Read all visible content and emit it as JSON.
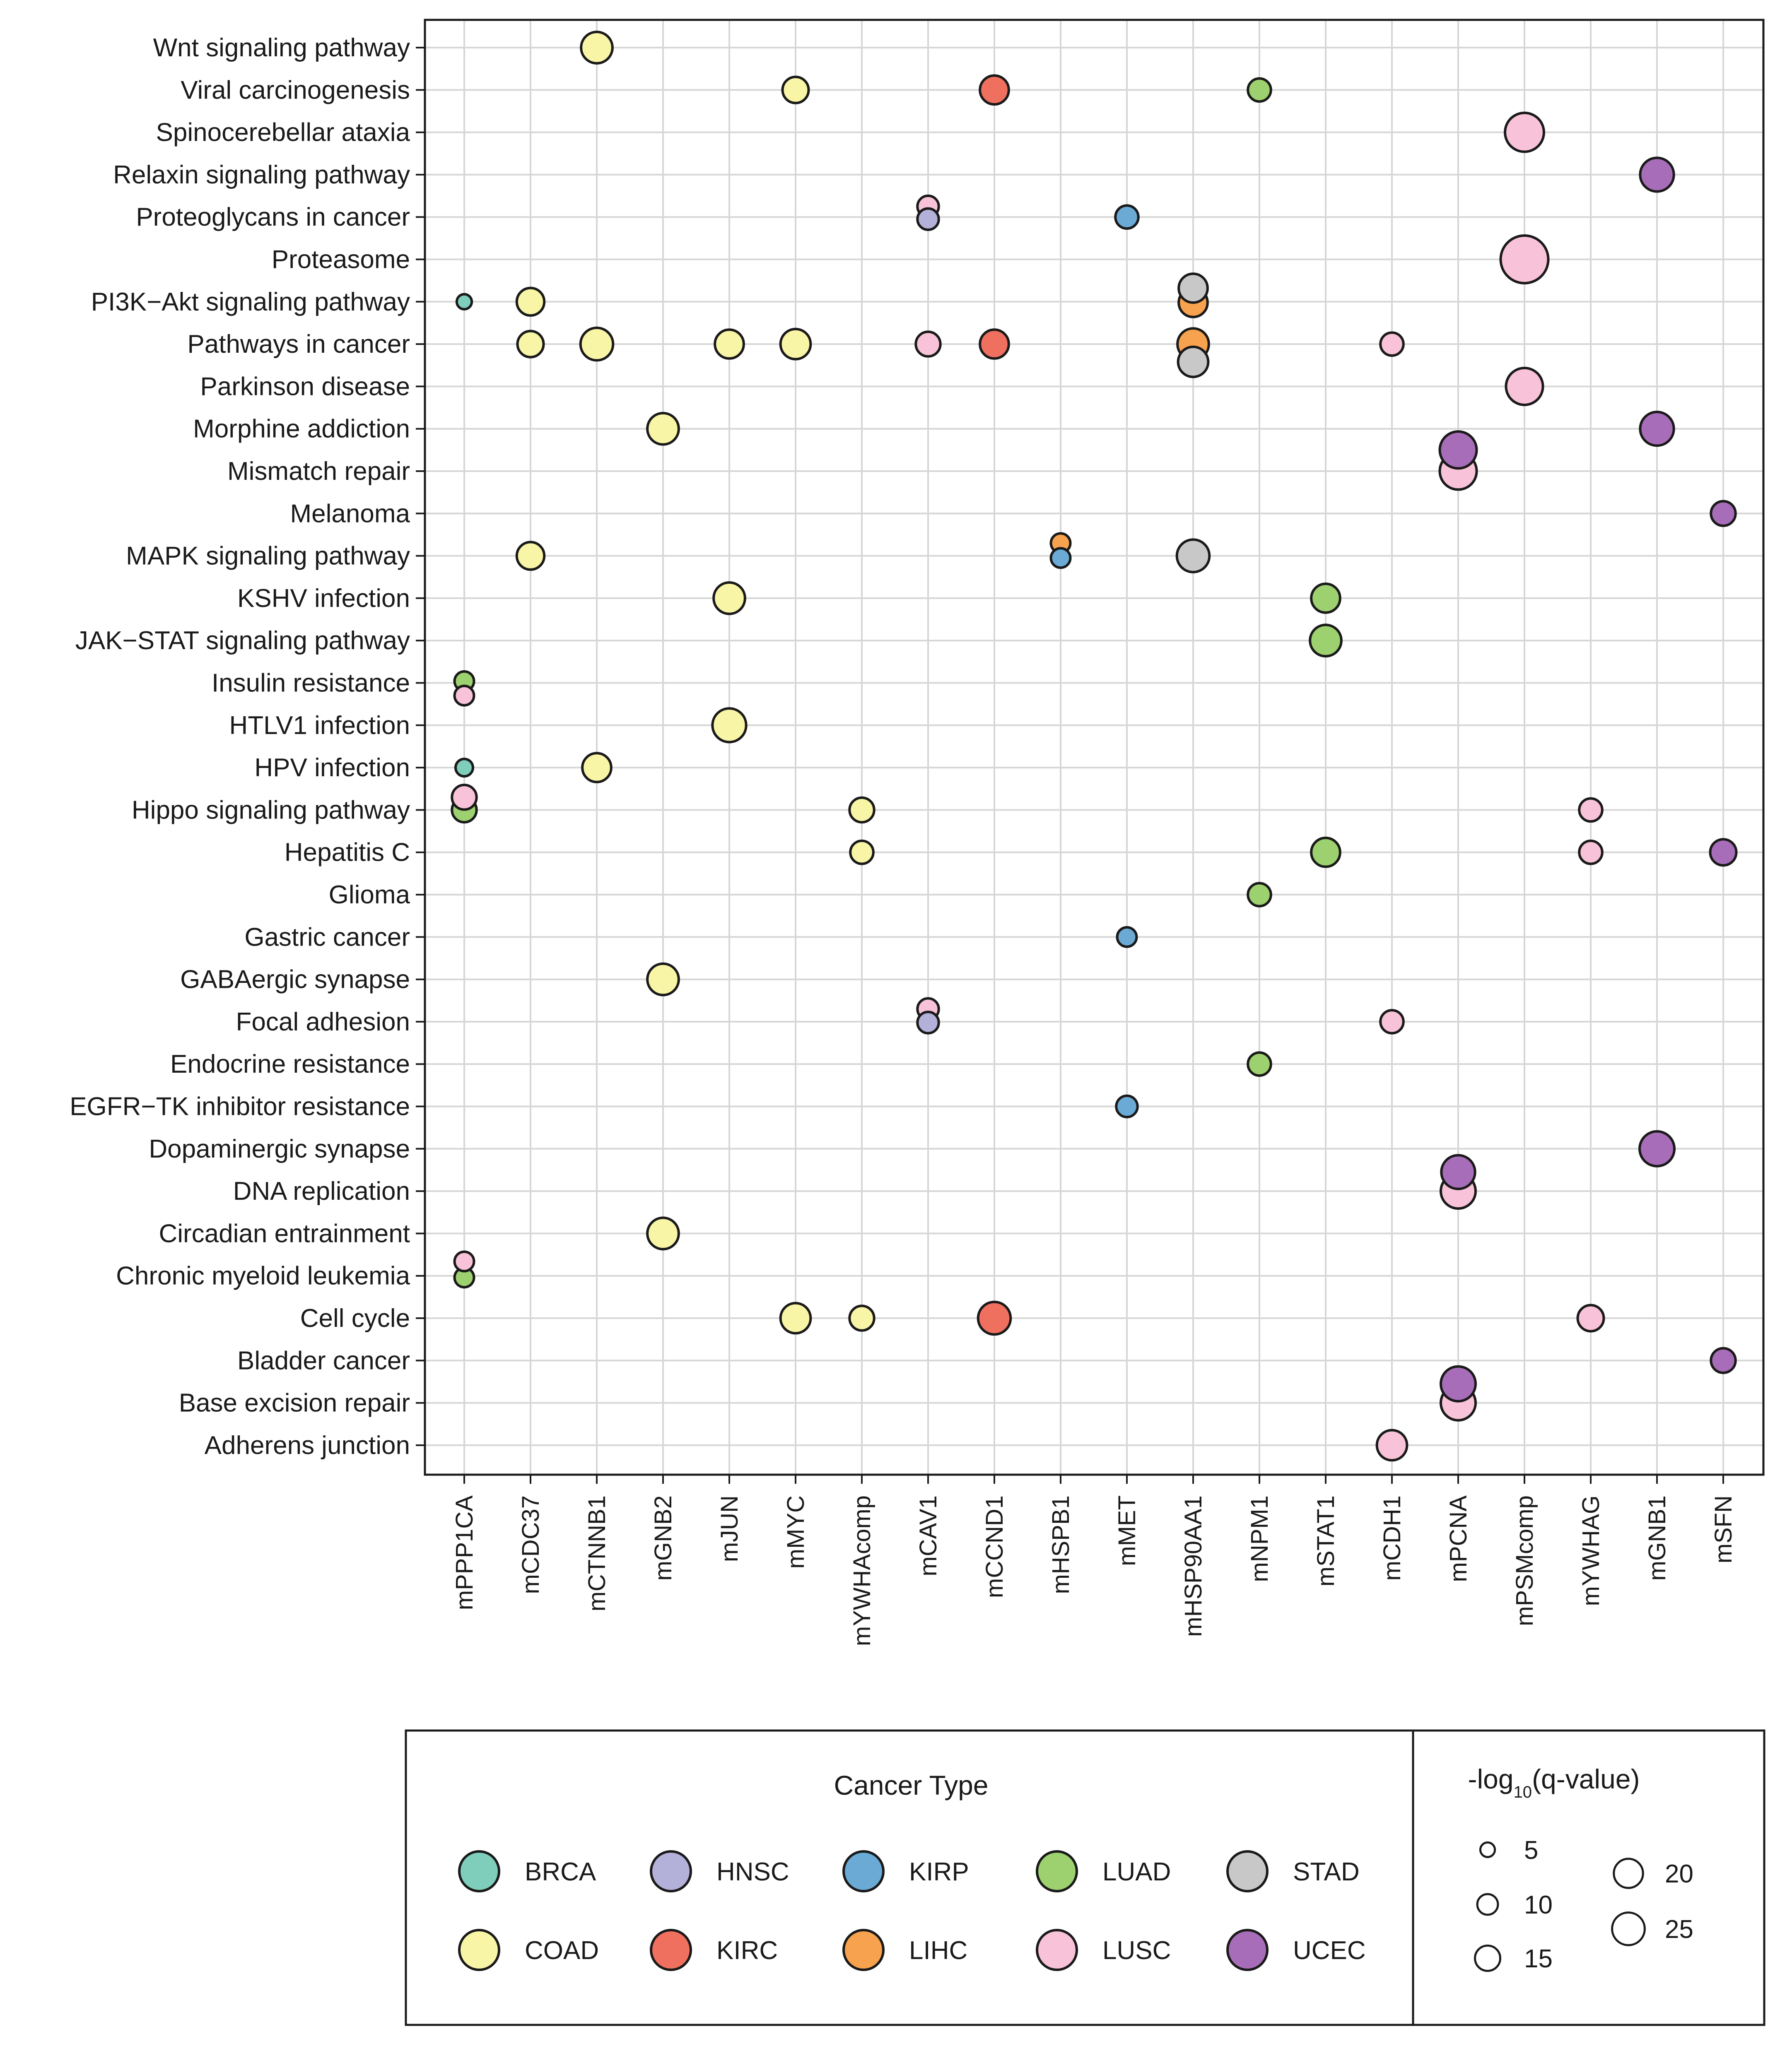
{
  "chart_data": {
    "type": "scatter",
    "title": "",
    "xlabel": "",
    "ylabel": "",
    "grid": true,
    "x_categories": [
      "mPPP1CA",
      "mCDC37",
      "mCTNNB1",
      "mGNB2",
      "mJUN",
      "mMYC",
      "mYWHAcomp",
      "mCAV1",
      "mCCND1",
      "mHSPB1",
      "mMET",
      "mHSP90AA1",
      "mNPM1",
      "mSTAT1",
      "mCDH1",
      "mPCNA",
      "mPSMcomp",
      "mYWHAG",
      "mGNB1",
      "mSFN"
    ],
    "y_categories": [
      "Wnt signaling pathway",
      "Viral carcinogenesis",
      "Spinocerebellar ataxia",
      "Relaxin signaling pathway",
      "Proteoglycans in cancer",
      "Proteasome",
      "PI3K−Akt signaling pathway",
      "Pathways in cancer",
      "Parkinson disease",
      "Morphine addiction",
      "Mismatch repair",
      "Melanoma",
      "MAPK signaling pathway",
      "KSHV infection",
      "JAK−STAT signaling pathway",
      "Insulin resistance",
      "HTLV1 infection",
      "HPV infection",
      "Hippo signaling pathway",
      "Hepatitis C",
      "Glioma",
      "Gastric cancer",
      "GABAergic synapse",
      "Focal adhesion",
      "Endocrine resistance",
      "EGFR−TK inhibitor resistance",
      "Dopaminergic synapse",
      "DNA replication",
      "Circadian entrainment",
      "Chronic myeloid leukemia",
      "Cell cycle",
      "Bladder cancer",
      "Base excision repair",
      "Adherens junction"
    ],
    "cancer_colors": {
      "BRCA": "#7fcdbb",
      "HNSC": "#b3b0d9",
      "KIRP": "#6aaad4",
      "LUAD": "#9dd06e",
      "STAD": "#c8c8c8",
      "COAD": "#f8f5a6",
      "KIRC": "#f0705f",
      "LIHC": "#f7a24e",
      "LUSC": "#f8c2d8",
      "UCEC": "#a86db8"
    },
    "points": [
      {
        "pathway": "Wnt signaling pathway",
        "gene": "mCTNNB1",
        "cancer": "COAD",
        "q": 13,
        "offset": 0
      },
      {
        "pathway": "Viral carcinogenesis",
        "gene": "mMYC",
        "cancer": "COAD",
        "q": 9,
        "offset": 0
      },
      {
        "pathway": "Viral carcinogenesis",
        "gene": "mCCND1",
        "cancer": "KIRC",
        "q": 11,
        "offset": 0
      },
      {
        "pathway": "Viral carcinogenesis",
        "gene": "mNPM1",
        "cancer": "LUAD",
        "q": 7,
        "offset": 0
      },
      {
        "pathway": "Spinocerebellar ataxia",
        "gene": "mPSMcomp",
        "cancer": "LUSC",
        "q": 20,
        "offset": 0
      },
      {
        "pathway": "Relaxin signaling pathway",
        "gene": "mGNB1",
        "cancer": "UCEC",
        "q": 15,
        "offset": 0
      },
      {
        "pathway": "Proteoglycans in cancer",
        "gene": "mCAV1",
        "cancer": "LUSC",
        "q": 6,
        "offset": -0.25
      },
      {
        "pathway": "Proteoglycans in cancer",
        "gene": "mCAV1",
        "cancer": "HNSC",
        "q": 6,
        "offset": 0.05
      },
      {
        "pathway": "Proteoglycans in cancer",
        "gene": "mMET",
        "cancer": "KIRP",
        "q": 7,
        "offset": 0
      },
      {
        "pathway": "Proteasome",
        "gene": "mPSMcomp",
        "cancer": "LUSC",
        "q": 30,
        "offset": 0
      },
      {
        "pathway": "PI3K−Akt signaling pathway",
        "gene": "mPPP1CA",
        "cancer": "BRCA",
        "q": 3,
        "offset": 0
      },
      {
        "pathway": "PI3K−Akt signaling pathway",
        "gene": "mCDC37",
        "cancer": "COAD",
        "q": 10,
        "offset": 0
      },
      {
        "pathway": "PI3K−Akt signaling pathway",
        "gene": "mHSP90AA1",
        "cancer": "LIHC",
        "q": 11,
        "offset": 0.02
      },
      {
        "pathway": "PI3K−Akt signaling pathway",
        "gene": "mHSP90AA1",
        "cancer": "STAD",
        "q": 11,
        "offset": -0.32
      },
      {
        "pathway": "Pathways in cancer",
        "gene": "mCDC37",
        "cancer": "COAD",
        "q": 9,
        "offset": 0
      },
      {
        "pathway": "Pathways in cancer",
        "gene": "mCTNNB1",
        "cancer": "COAD",
        "q": 14,
        "offset": 0
      },
      {
        "pathway": "Pathways in cancer",
        "gene": "mJUN",
        "cancer": "COAD",
        "q": 11,
        "offset": 0
      },
      {
        "pathway": "Pathways in cancer",
        "gene": "mMYC",
        "cancer": "COAD",
        "q": 12,
        "offset": 0
      },
      {
        "pathway": "Pathways in cancer",
        "gene": "mCAV1",
        "cancer": "LUSC",
        "q": 8,
        "offset": 0
      },
      {
        "pathway": "Pathways in cancer",
        "gene": "mCCND1",
        "cancer": "KIRC",
        "q": 11,
        "offset": 0
      },
      {
        "pathway": "Pathways in cancer",
        "gene": "mHSP90AA1",
        "cancer": "LIHC",
        "q": 13,
        "offset": 0
      },
      {
        "pathway": "Pathways in cancer",
        "gene": "mHSP90AA1",
        "cancer": "STAD",
        "q": 12,
        "offset": 0.42
      },
      {
        "pathway": "Pathways in cancer",
        "gene": "mCDH1",
        "cancer": "LUSC",
        "q": 7,
        "offset": 0
      },
      {
        "pathway": "Parkinson disease",
        "gene": "mPSMcomp",
        "cancer": "LUSC",
        "q": 18,
        "offset": 0
      },
      {
        "pathway": "Morphine addiction",
        "gene": "mGNB2",
        "cancer": "COAD",
        "q": 13,
        "offset": 0
      },
      {
        "pathway": "Morphine addiction",
        "gene": "mGNB1",
        "cancer": "UCEC",
        "q": 15,
        "offset": 0
      },
      {
        "pathway": "Mismatch repair",
        "gene": "mPCNA",
        "cancer": "LUSC",
        "q": 18,
        "offset": 0
      },
      {
        "pathway": "Mismatch repair",
        "gene": "mPCNA",
        "cancer": "UCEC",
        "q": 18,
        "offset": -0.5
      },
      {
        "pathway": "Melanoma",
        "gene": "mSFN",
        "cancer": "UCEC",
        "q": 8,
        "offset": 0
      },
      {
        "pathway": "MAPK signaling pathway",
        "gene": "mCDC37",
        "cancer": "COAD",
        "q": 10,
        "offset": 0
      },
      {
        "pathway": "MAPK signaling pathway",
        "gene": "mHSPB1",
        "cancer": "LIHC",
        "q": 5,
        "offset": -0.3
      },
      {
        "pathway": "MAPK signaling pathway",
        "gene": "mHSPB1",
        "cancer": "KIRP",
        "q": 5,
        "offset": 0.05
      },
      {
        "pathway": "MAPK signaling pathway",
        "gene": "mHSP90AA1",
        "cancer": "STAD",
        "q": 14,
        "offset": 0
      },
      {
        "pathway": "KSHV infection",
        "gene": "mJUN",
        "cancer": "COAD",
        "q": 13,
        "offset": 0
      },
      {
        "pathway": "KSHV infection",
        "gene": "mSTAT1",
        "cancer": "LUAD",
        "q": 11,
        "offset": 0
      },
      {
        "pathway": "JAK−STAT signaling pathway",
        "gene": "mSTAT1",
        "cancer": "LUAD",
        "q": 13,
        "offset": 0
      },
      {
        "pathway": "Insulin resistance",
        "gene": "mPPP1CA",
        "cancer": "LUAD",
        "q": 5,
        "offset": -0.04
      },
      {
        "pathway": "Insulin resistance",
        "gene": "mPPP1CA",
        "cancer": "LUSC",
        "q": 5,
        "offset": 0.3
      },
      {
        "pathway": "HTLV1 infection",
        "gene": "mJUN",
        "cancer": "COAD",
        "q": 15,
        "offset": 0
      },
      {
        "pathway": "HPV infection",
        "gene": "mPPP1CA",
        "cancer": "BRCA",
        "q": 4,
        "offset": 0
      },
      {
        "pathway": "HPV infection",
        "gene": "mCTNNB1",
        "cancer": "COAD",
        "q": 11,
        "offset": 0
      },
      {
        "pathway": "Hippo signaling pathway",
        "gene": "mPPP1CA",
        "cancer": "LUAD",
        "q": 8,
        "offset": 0
      },
      {
        "pathway": "Hippo signaling pathway",
        "gene": "mPPP1CA",
        "cancer": "LUSC",
        "q": 8,
        "offset": -0.3
      },
      {
        "pathway": "Hippo signaling pathway",
        "gene": "mYWHAcomp",
        "cancer": "COAD",
        "q": 8,
        "offset": 0
      },
      {
        "pathway": "Hippo signaling pathway",
        "gene": "mYWHAG",
        "cancer": "LUSC",
        "q": 7,
        "offset": 0
      },
      {
        "pathway": "Hepatitis C",
        "gene": "mYWHAcomp",
        "cancer": "COAD",
        "q": 7,
        "offset": 0
      },
      {
        "pathway": "Hepatitis C",
        "gene": "mSTAT1",
        "cancer": "LUAD",
        "q": 11,
        "offset": 0
      },
      {
        "pathway": "Hepatitis C",
        "gene": "mYWHAG",
        "cancer": "LUSC",
        "q": 7,
        "offset": 0
      },
      {
        "pathway": "Hepatitis C",
        "gene": "mSFN",
        "cancer": "UCEC",
        "q": 9,
        "offset": 0
      },
      {
        "pathway": "Glioma",
        "gene": "mNPM1",
        "cancer": "LUAD",
        "q": 7,
        "offset": 0
      },
      {
        "pathway": "Gastric cancer",
        "gene": "mMET",
        "cancer": "KIRP",
        "q": 5,
        "offset": 0
      },
      {
        "pathway": "GABAergic synapse",
        "gene": "mGNB2",
        "cancer": "COAD",
        "q": 13,
        "offset": 0
      },
      {
        "pathway": "Focal adhesion",
        "gene": "mCAV1",
        "cancer": "LUSC",
        "q": 6,
        "offset": -0.3
      },
      {
        "pathway": "Focal adhesion",
        "gene": "mCAV1",
        "cancer": "HNSC",
        "q": 6,
        "offset": 0.02
      },
      {
        "pathway": "Focal adhesion",
        "gene": "mCDH1",
        "cancer": "LUSC",
        "q": 7,
        "offset": 0
      },
      {
        "pathway": "Endocrine resistance",
        "gene": "mNPM1",
        "cancer": "LUAD",
        "q": 7,
        "offset": 0
      },
      {
        "pathway": "EGFR−TK inhibitor resistance",
        "gene": "mMET",
        "cancer": "KIRP",
        "q": 6,
        "offset": 0
      },
      {
        "pathway": "Dopaminergic synapse",
        "gene": "mGNB1",
        "cancer": "UCEC",
        "q": 16,
        "offset": 0
      },
      {
        "pathway": "DNA replication",
        "gene": "mPCNA",
        "cancer": "LUSC",
        "q": 16,
        "offset": 0
      },
      {
        "pathway": "DNA replication",
        "gene": "mPCNA",
        "cancer": "UCEC",
        "q": 15,
        "offset": -0.45
      },
      {
        "pathway": "Circadian entrainment",
        "gene": "mGNB2",
        "cancer": "COAD",
        "q": 13,
        "offset": 0
      },
      {
        "pathway": "Chronic myeloid leukemia",
        "gene": "mPPP1CA",
        "cancer": "LUAD",
        "q": 5,
        "offset": 0.04
      },
      {
        "pathway": "Chronic myeloid leukemia",
        "gene": "mPPP1CA",
        "cancer": "LUSC",
        "q": 5,
        "offset": -0.34
      },
      {
        "pathway": "Cell cycle",
        "gene": "mMYC",
        "cancer": "COAD",
        "q": 12,
        "offset": 0
      },
      {
        "pathway": "Cell cycle",
        "gene": "mYWHAcomp",
        "cancer": "COAD",
        "q": 8,
        "offset": 0
      },
      {
        "pathway": "Cell cycle",
        "gene": "mCCND1",
        "cancer": "KIRC",
        "q": 14,
        "offset": 0
      },
      {
        "pathway": "Cell cycle",
        "gene": "mYWHAG",
        "cancer": "LUSC",
        "q": 9,
        "offset": 0
      },
      {
        "pathway": "Bladder cancer",
        "gene": "mSFN",
        "cancer": "UCEC",
        "q": 8,
        "offset": 0
      },
      {
        "pathway": "Base excision repair",
        "gene": "mPCNA",
        "cancer": "LUSC",
        "q": 16,
        "offset": 0
      },
      {
        "pathway": "Base excision repair",
        "gene": "mPCNA",
        "cancer": "UCEC",
        "q": 16,
        "offset": -0.45
      },
      {
        "pathway": "Adherens junction",
        "gene": "mCDH1",
        "cancer": "LUSC",
        "q": 12,
        "offset": 0
      }
    ],
    "legend": {
      "color_title": "Cancer Type",
      "color_entries": [
        "BRCA",
        "HNSC",
        "KIRP",
        "LUAD",
        "STAD",
        "COAD",
        "KIRC",
        "LIHC",
        "LUSC",
        "UCEC"
      ],
      "size_title_prefix": "-log",
      "size_title_sub": "10",
      "size_title_suffix": "(q-value)",
      "size_entries": [
        {
          "label": "5",
          "value": 5
        },
        {
          "label": "10",
          "value": 10
        },
        {
          "label": "15",
          "value": 15
        },
        {
          "label": "20",
          "value": 20
        },
        {
          "label": "25",
          "value": 25
        }
      ]
    }
  }
}
